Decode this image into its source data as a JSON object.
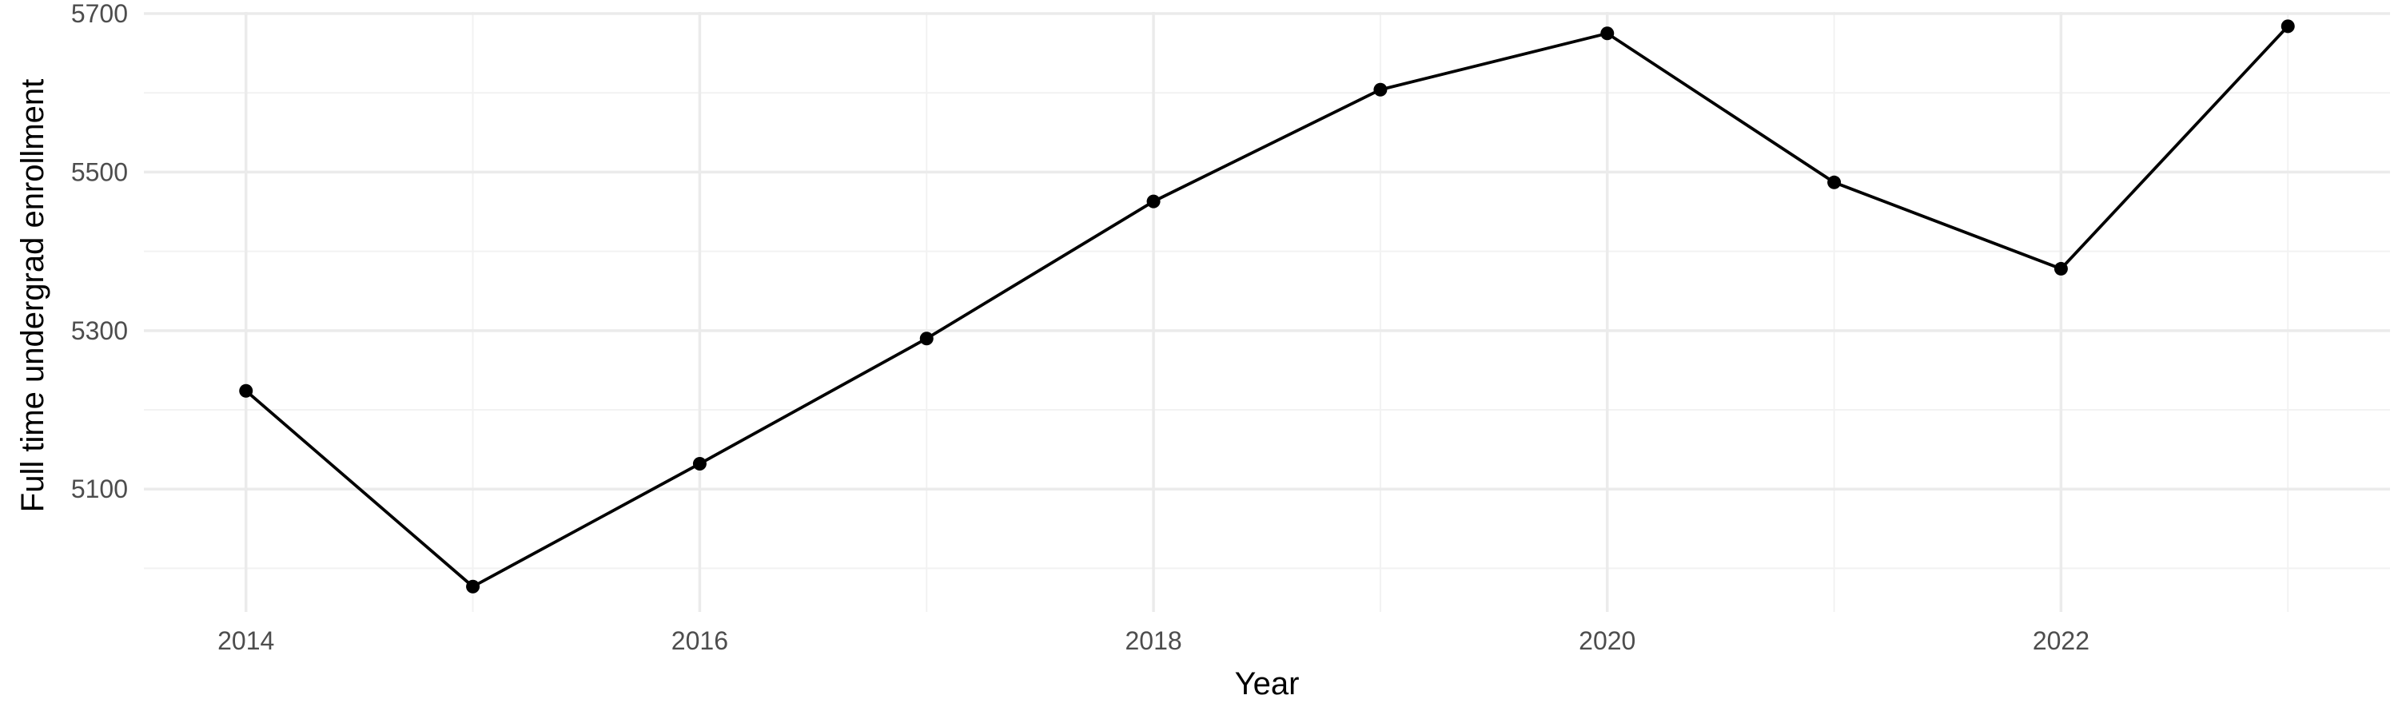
{
  "chart_data": {
    "type": "line",
    "title": "",
    "xlabel": "Year",
    "ylabel": "Full time undergrad enrollment",
    "x": [
      2014,
      2015,
      2016,
      2017,
      2018,
      2019,
      2020,
      2021,
      2022,
      2023
    ],
    "series": [
      {
        "values": [
          5224,
          4977,
          5132,
          5290,
          5463,
          5604,
          5675,
          5487,
          5378,
          5684
        ]
      }
    ],
    "xlim": [
      2013.55,
      2023.45
    ],
    "ylim": [
      4945,
      5702
    ],
    "x_ticks": [
      2014,
      2016,
      2018,
      2020,
      2022
    ],
    "x_tick_labels": [
      "2014",
      "2016",
      "2018",
      "2020",
      "2022"
    ],
    "x_minor_ticks": [
      2015,
      2017,
      2019,
      2021,
      2023
    ],
    "y_ticks": [
      5100,
      5300,
      5500,
      5700
    ],
    "y_tick_labels": [
      "5100",
      "5300",
      "5500",
      "5700"
    ],
    "y_minor_ticks": [
      5000,
      5200,
      5400,
      5600
    ],
    "grid": true,
    "legend": "none",
    "colors": {
      "line": "#000000",
      "point": "#000000",
      "grid_major": "#ebebeb",
      "grid_minor": "#f2f2f2",
      "tick_text": "#4d4d4d",
      "axis_title": "#000000",
      "background": "#ffffff"
    }
  }
}
